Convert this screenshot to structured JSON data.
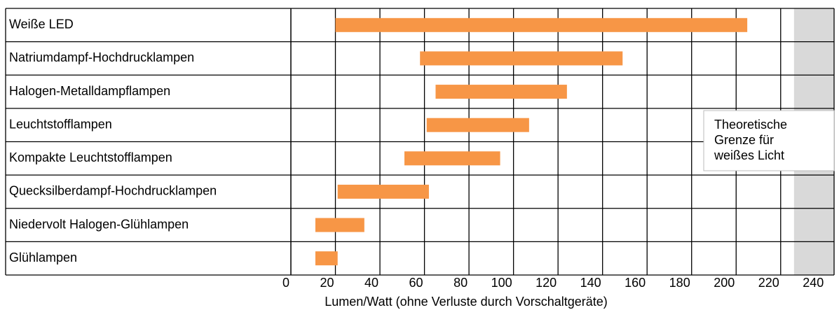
{
  "chart_data": {
    "type": "range-bar",
    "categories": [
      "Weiße LED",
      "Natriumdampf-Hochdrucklampen",
      "Halogen-Metalldampflampen",
      "Leuchtstofflampen",
      "Kompakte Leuchtstofflampen",
      "Quecksilberdampf-Hochdrucklampen",
      "Niedervolt Halogen-Glühlampen",
      "Glühlampen"
    ],
    "starts": [
      20,
      58,
      65,
      61,
      51,
      21,
      11,
      11
    ],
    "ends": [
      205,
      149,
      124,
      107,
      94,
      62,
      33,
      21
    ],
    "color": "#f79646",
    "xlabel": "Lumen/Watt (ohne Verluste durch Vorschaltgeräte)",
    "xlim": [
      0,
      244
    ],
    "xticks": [
      0,
      20,
      40,
      60,
      80,
      100,
      120,
      140,
      160,
      180,
      200,
      220,
      240
    ],
    "grid": true,
    "limit_region": {
      "range": [
        226,
        244
      ],
      "color": "#d9d9d9",
      "label": [
        "Theoretische",
        "Grenze für",
        "weißes Licht"
      ]
    }
  }
}
